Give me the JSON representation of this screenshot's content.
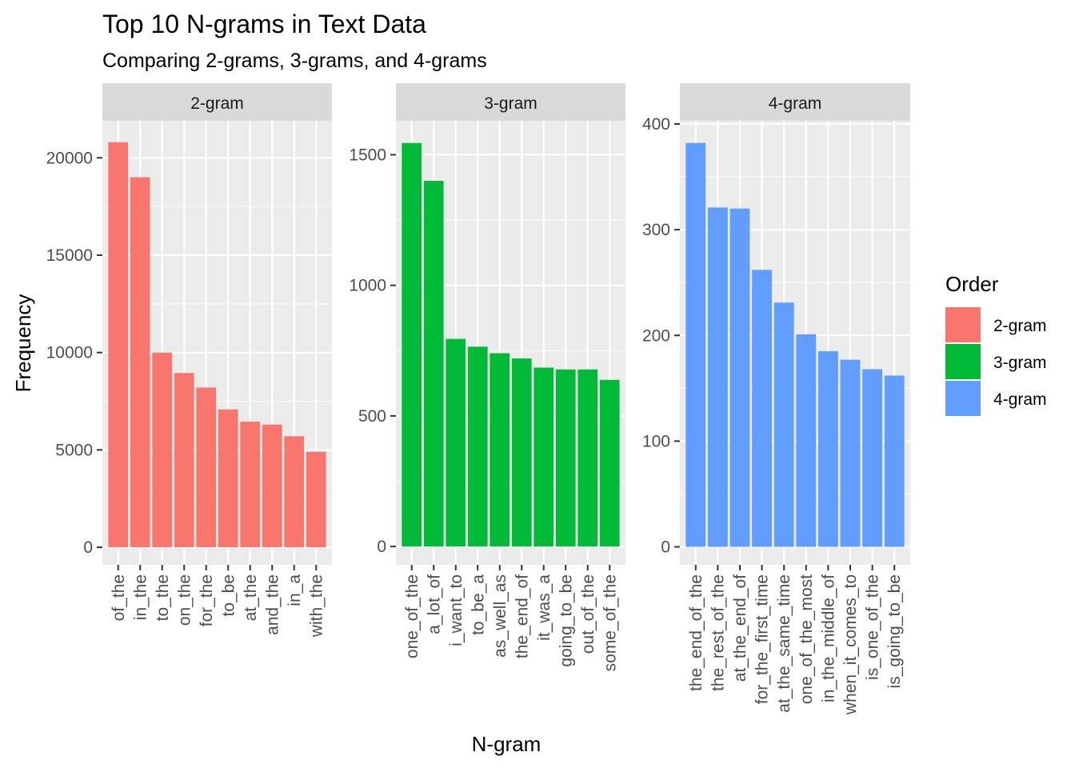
{
  "chart_data": {
    "type": "bar",
    "title": "Top 10 N-grams in Text Data",
    "subtitle": "Comparing 2-grams, 3-grams, and 4-grams",
    "xlabel": "N-gram",
    "ylabel": "Frequency",
    "legend": {
      "title": "Order",
      "placement": "right",
      "entries": [
        {
          "label": "2-gram",
          "color": "#F8766D"
        },
        {
          "label": "3-gram",
          "color": "#00BA38"
        },
        {
          "label": "4-gram",
          "color": "#619CFF"
        }
      ]
    },
    "grid": true,
    "facets": [
      {
        "name": "2-gram",
        "color": "#F8766D",
        "ylim": [
          -900,
          21900
        ],
        "yticks": [
          0,
          5000,
          10000,
          15000,
          20000
        ],
        "yticklabels": [
          "0",
          "5000",
          "10000",
          "15000",
          "20000"
        ],
        "categories": [
          "of_the",
          "in_the",
          "to_the",
          "on_the",
          "for_the",
          "to_be",
          "at_the",
          "and_the",
          "in_a",
          "with_the"
        ],
        "values": [
          20800,
          19000,
          10000,
          8950,
          8200,
          7080,
          6450,
          6300,
          5700,
          4900
        ]
      },
      {
        "name": "3-gram",
        "color": "#00BA38",
        "ylim": [
          -70,
          1630
        ],
        "yticks": [
          0,
          500,
          1000,
          1500
        ],
        "yticklabels": [
          "0",
          "500",
          "1000",
          "1500"
        ],
        "categories": [
          "one_of_the",
          "a_lot_of",
          "i_want_to",
          "to_be_a",
          "as_well_as",
          "the_end_of",
          "it_was_a",
          "going_to_be",
          "out_of_the",
          "some_of_the"
        ],
        "values": [
          1545,
          1400,
          795,
          765,
          740,
          720,
          685,
          678,
          678,
          638
        ]
      },
      {
        "name": "4-gram",
        "color": "#619CFF",
        "ylim": [
          -17,
          403
        ],
        "yticks": [
          0,
          100,
          200,
          300,
          400
        ],
        "yticklabels": [
          "0",
          "100",
          "200",
          "300",
          "400"
        ],
        "categories": [
          "the_end_of_the",
          "the_rest_of_the",
          "at_the_end_of",
          "for_the_first_time",
          "at_the_same_time",
          "one_of_the_most",
          "in_the_middle_of",
          "when_it_comes_to",
          "is_one_of_the",
          "is_going_to_be"
        ],
        "values": [
          382,
          321,
          320,
          262,
          231,
          201,
          185,
          177,
          168,
          162
        ]
      }
    ]
  }
}
